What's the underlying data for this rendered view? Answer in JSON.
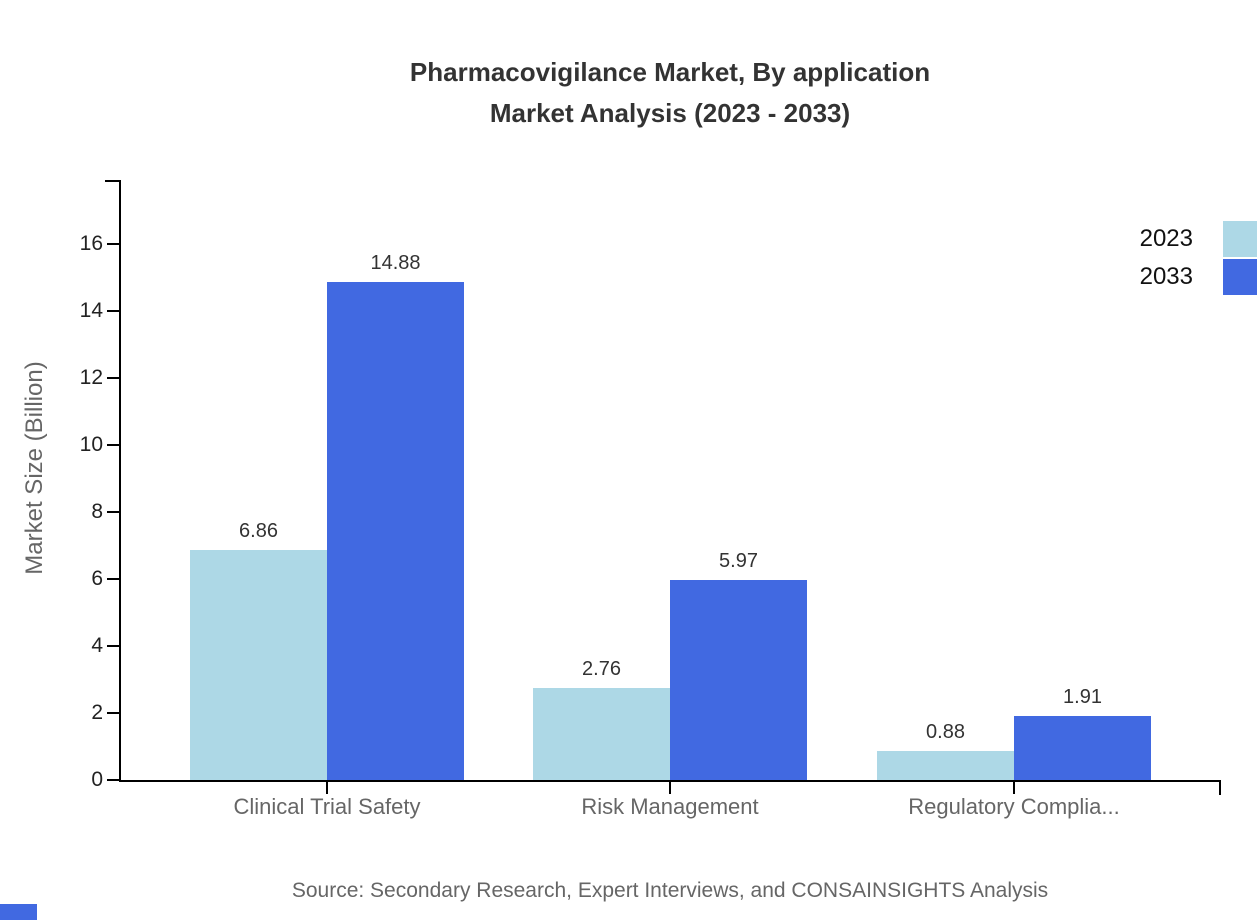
{
  "chart_data": {
    "type": "bar",
    "title_line1": "Pharmacovigilance Market, By application",
    "title_line2": "Market Analysis (2023 - 2033)",
    "ylabel": "Market Size (Billion)",
    "xlabel": "",
    "categories": [
      "Clinical Trial Safety",
      "Risk Management",
      "Regulatory Complia..."
    ],
    "series": [
      {
        "name": "2023",
        "color": "#ADD8E6",
        "values": [
          6.86,
          2.76,
          0.88
        ]
      },
      {
        "name": "2033",
        "color": "#4169E1",
        "values": [
          14.88,
          5.97,
          1.91
        ]
      }
    ],
    "value_labels": [
      [
        "6.86",
        "2.76",
        "0.88"
      ],
      [
        "14.88",
        "5.97",
        "1.91"
      ]
    ],
    "y_ticks": [
      0,
      2,
      4,
      6,
      8,
      10,
      12,
      14,
      16
    ],
    "ylim": [
      0,
      18
    ],
    "grid": false,
    "legend_position": "top-right-edge"
  },
  "source_text": "Source: Secondary Research, Expert Interviews, and CONSAINSIGHTS Analysis",
  "colors": {
    "series_2023": "#ADD8E6",
    "series_2033": "#4169E1",
    "title_text": "#333333",
    "axis_line": "#000000",
    "tick_label": "#222222",
    "muted_text": "#666666"
  }
}
